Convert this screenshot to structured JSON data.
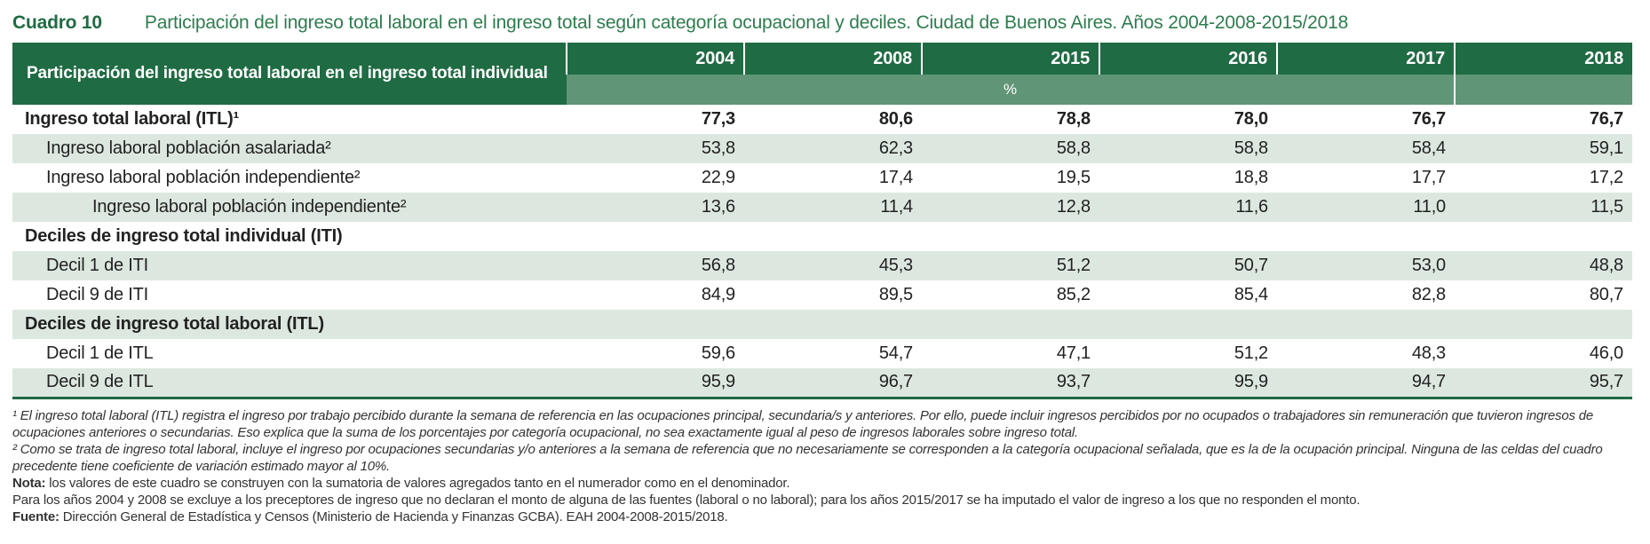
{
  "colors": {
    "header_green": "#1f6b43",
    "unit_green": "#609577",
    "row_shaded": "#dce8df",
    "title_green": "#2d7d4e"
  },
  "caption": {
    "number": "Cuadro 10",
    "title": "Participación del ingreso total laboral en el ingreso total según categoría ocupacional y deciles. Ciudad de Buenos Aires. Años 2004-2008-2015/2018"
  },
  "table": {
    "stub_header": "Participación del ingreso total laboral en el ingreso total individual",
    "years": [
      "2004",
      "2008",
      "2015",
      "2016",
      "2017",
      "2018"
    ],
    "unit": "%",
    "rows": [
      {
        "label": "Ingreso total laboral (ITL)¹",
        "indent": 0,
        "bold": true,
        "values": [
          "77,3",
          "80,6",
          "78,8",
          "78,0",
          "76,7",
          "76,7"
        ]
      },
      {
        "label": "Ingreso laboral población asalariada²",
        "indent": 1,
        "bold": false,
        "values": [
          "53,8",
          "62,3",
          "58,8",
          "58,8",
          "58,4",
          "59,1"
        ]
      },
      {
        "label": "Ingreso laboral población independiente²",
        "indent": 1,
        "bold": false,
        "values": [
          "22,9",
          "17,4",
          "19,5",
          "18,8",
          "17,7",
          "17,2"
        ]
      },
      {
        "label": "Ingreso laboral población independiente²",
        "indent": 2,
        "bold": false,
        "values": [
          "13,6",
          "11,4",
          "12,8",
          "11,6",
          "11,0",
          "11,5"
        ]
      },
      {
        "label": "Deciles de ingreso total individual (ITI)",
        "indent": 0,
        "bold": true,
        "values": [
          "",
          "",
          "",
          "",
          "",
          ""
        ]
      },
      {
        "label": "Decil 1 de ITI",
        "indent": 1,
        "bold": false,
        "values": [
          "56,8",
          "45,3",
          "51,2",
          "50,7",
          "53,0",
          "48,8"
        ]
      },
      {
        "label": "Decil 9 de ITI",
        "indent": 1,
        "bold": false,
        "values": [
          "84,9",
          "89,5",
          "85,2",
          "85,4",
          "82,8",
          "80,7"
        ]
      },
      {
        "label": "Deciles de ingreso total laboral (ITL)",
        "indent": 0,
        "bold": true,
        "values": [
          "",
          "",
          "",
          "",
          "",
          ""
        ]
      },
      {
        "label": "Decil 1 de ITL",
        "indent": 1,
        "bold": false,
        "values": [
          "59,6",
          "54,7",
          "47,1",
          "51,2",
          "48,3",
          "46,0"
        ]
      },
      {
        "label": "Decil 9 de ITL",
        "indent": 1,
        "bold": false,
        "values": [
          "95,9",
          "96,7",
          "93,7",
          "95,9",
          "94,7",
          "95,7"
        ]
      }
    ]
  },
  "footnotes": {
    "fn1_marker": "¹ ",
    "fn1_text": "El ingreso total laboral (ITL) registra el ingreso por trabajo percibido durante la semana de referencia en las ocupaciones principal, secundaria/s y anteriores. Por ello, puede incluir ingresos percibidos por no ocupados o trabajadores sin remuneración que tuvieron ingresos de ocupaciones anteriores o secundarias. Eso explica que la suma de los porcentajes por categoría ocupacional, no sea exactamente igual al peso de ingresos laborales sobre ingreso total.",
    "fn2_marker": "² ",
    "fn2_text": "Como se trata de ingreso total laboral, incluye el ingreso por ocupaciones secundarias y/o anteriores a la semana de referencia que no necesariamente se corresponden a la categoría ocupacional señalada, que es la de la ocupación principal. Ninguna de las celdas del cuadro precedente tiene coeficiente de variación estimado mayor al 10%.",
    "nota_label": "Nota: ",
    "nota_text": "los valores de este cuadro se construyen con la sumatoria de valores agregados tanto en el numerador como en el denominador.",
    "nota2_text": "Para los años 2004 y 2008 se excluye a los preceptores de ingreso que no declaran el monto de alguna de las fuentes (laboral o no laboral); para los años 2015/2017 se ha imputado el valor de ingreso a los que no responden el monto.",
    "fuente_label": "Fuente: ",
    "fuente_text": "Dirección General de Estadística y Censos (Ministerio de Hacienda y Finanzas GCBA). EAH 2004-2008-2015/2018."
  }
}
